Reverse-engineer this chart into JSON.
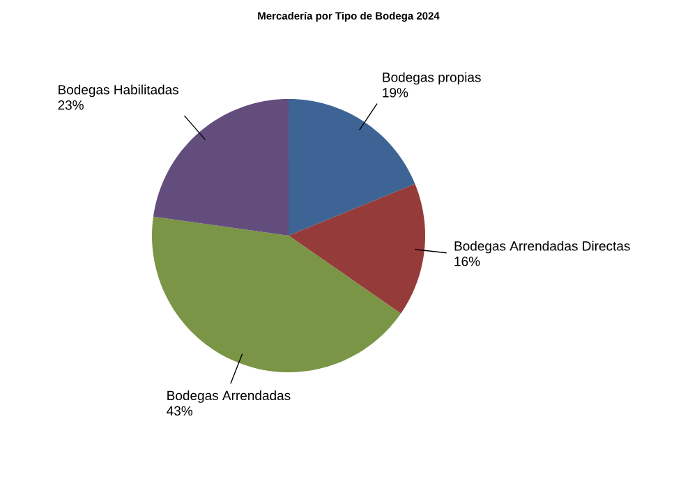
{
  "chart_data": {
    "type": "pie",
    "title": "Mercadería por Tipo de Bodega 2024",
    "categories": [
      "Bodegas propias",
      "Bodegas Arrendadas Directas",
      "Bodegas Arrendadas",
      "Bodegas Habilitadas"
    ],
    "values": [
      19,
      16,
      43,
      23
    ],
    "value_labels": [
      "19%",
      "16%",
      "43%",
      "23%"
    ],
    "colors": [
      "#3d6494",
      "#953b3a",
      "#7a9545",
      "#634d7d"
    ]
  }
}
